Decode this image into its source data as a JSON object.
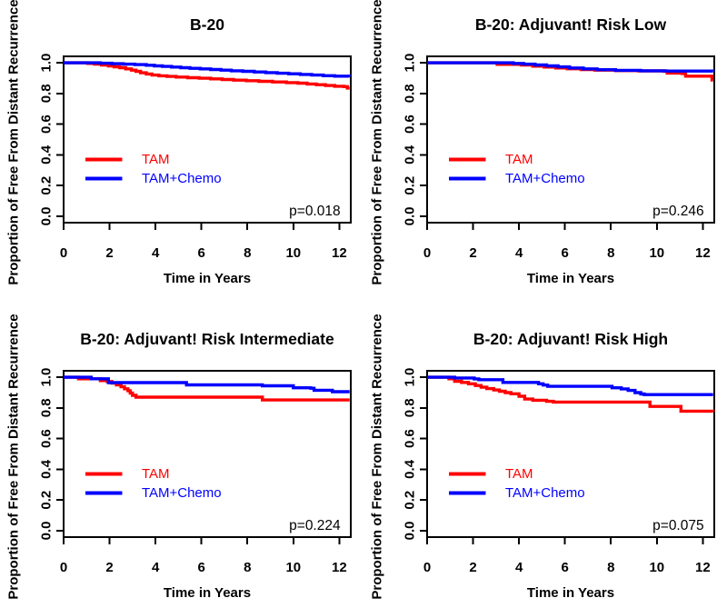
{
  "figure": {
    "background": "#ffffff",
    "axis_color": "#000000",
    "tam_color": "#ff0000",
    "tam_chemo_color": "#0000ff"
  },
  "chart_data": [
    {
      "type": "line",
      "subtype": "kaplan-meier-step",
      "title": "B-20",
      "xlabel": "Time in Years",
      "ylabel": "Proportion of Free From Distant Recurrence",
      "xlim": [
        0,
        12
      ],
      "ylim": [
        0,
        1
      ],
      "xticks": [
        0,
        2,
        4,
        6,
        8,
        10,
        12
      ],
      "yticks": [
        "0.0",
        "0.2",
        "0.4",
        "0.6",
        "0.8",
        "1.0"
      ],
      "annotation": "p=0.018",
      "p_value": 0.018,
      "grid": false,
      "legend": {
        "entries": [
          {
            "label": "TAM",
            "color": "#ff0000"
          },
          {
            "label": "TAM+Chemo",
            "color": "#0000ff"
          }
        ]
      },
      "series": [
        {
          "name": "TAM",
          "color": "#ff0000",
          "points": [
            [
              0,
              1.0
            ],
            [
              0.9,
              1.0
            ],
            [
              1.05,
              0.996
            ],
            [
              1.35,
              0.991
            ],
            [
              1.65,
              0.986
            ],
            [
              1.95,
              0.98
            ],
            [
              2.2,
              0.974
            ],
            [
              2.45,
              0.968
            ],
            [
              2.7,
              0.96
            ],
            [
              2.95,
              0.952
            ],
            [
              3.15,
              0.944
            ],
            [
              3.35,
              0.935
            ],
            [
              3.6,
              0.927
            ],
            [
              3.85,
              0.92
            ],
            [
              4.15,
              0.915
            ],
            [
              4.5,
              0.911
            ],
            [
              4.9,
              0.907
            ],
            [
              5.4,
              0.903
            ],
            [
              5.9,
              0.899
            ],
            [
              6.4,
              0.895
            ],
            [
              6.9,
              0.891
            ],
            [
              7.4,
              0.887
            ],
            [
              7.95,
              0.883
            ],
            [
              8.5,
              0.879
            ],
            [
              9.1,
              0.875
            ],
            [
              9.7,
              0.871
            ],
            [
              10.2,
              0.867
            ],
            [
              10.6,
              0.862
            ],
            [
              11.0,
              0.857
            ],
            [
              11.4,
              0.852
            ],
            [
              11.8,
              0.847
            ],
            [
              12.2,
              0.845
            ],
            [
              12.35,
              0.835
            ]
          ]
        },
        {
          "name": "TAM+Chemo",
          "color": "#0000ff",
          "points": [
            [
              0,
              1.0
            ],
            [
              1.45,
              1.0
            ],
            [
              1.6,
              0.997
            ],
            [
              2.1,
              0.994
            ],
            [
              2.6,
              0.991
            ],
            [
              3.1,
              0.988
            ],
            [
              3.6,
              0.984
            ],
            [
              3.95,
              0.98
            ],
            [
              4.3,
              0.976
            ],
            [
              4.7,
              0.972
            ],
            [
              5.1,
              0.968
            ],
            [
              5.5,
              0.964
            ],
            [
              5.95,
              0.96
            ],
            [
              6.4,
              0.956
            ],
            [
              6.85,
              0.952
            ],
            [
              7.3,
              0.948
            ],
            [
              7.8,
              0.944
            ],
            [
              8.3,
              0.94
            ],
            [
              8.8,
              0.936
            ],
            [
              9.3,
              0.932
            ],
            [
              9.8,
              0.928
            ],
            [
              10.3,
              0.924
            ],
            [
              10.8,
              0.92
            ],
            [
              11.3,
              0.916
            ],
            [
              11.8,
              0.913
            ],
            [
              12.45,
              0.911
            ]
          ]
        }
      ]
    },
    {
      "type": "line",
      "subtype": "kaplan-meier-step",
      "title": "B-20: Adjuvant! Risk Low",
      "xlabel": "Time in Years",
      "ylabel": "Proportion of Free From Distant Recurrence",
      "xlim": [
        0,
        12
      ],
      "ylim": [
        0,
        1
      ],
      "xticks": [
        0,
        2,
        4,
        6,
        8,
        10,
        12
      ],
      "yticks": [
        "0.0",
        "0.2",
        "0.4",
        "0.6",
        "0.8",
        "1.0"
      ],
      "annotation": "p=0.246",
      "p_value": 0.246,
      "grid": false,
      "legend": {
        "entries": [
          {
            "label": "TAM",
            "color": "#ff0000"
          },
          {
            "label": "TAM+Chemo",
            "color": "#0000ff"
          }
        ]
      },
      "series": [
        {
          "name": "TAM",
          "color": "#ff0000",
          "points": [
            [
              0,
              1.0
            ],
            [
              2.9,
              1.0
            ],
            [
              3.05,
              0.99
            ],
            [
              3.9,
              0.99
            ],
            [
              4.1,
              0.985
            ],
            [
              4.6,
              0.978
            ],
            [
              5.1,
              0.972
            ],
            [
              5.6,
              0.966
            ],
            [
              6.1,
              0.961
            ],
            [
              6.7,
              0.956
            ],
            [
              7.3,
              0.952
            ],
            [
              8.2,
              0.949
            ],
            [
              9.2,
              0.947
            ],
            [
              10.3,
              0.945
            ],
            [
              10.45,
              0.933
            ],
            [
              11.1,
              0.93
            ],
            [
              11.25,
              0.913
            ],
            [
              12.3,
              0.913
            ],
            [
              12.4,
              0.888
            ]
          ]
        },
        {
          "name": "TAM+Chemo",
          "color": "#0000ff",
          "points": [
            [
              0,
              1.0
            ],
            [
              3.6,
              1.0
            ],
            [
              3.75,
              0.996
            ],
            [
              4.2,
              0.991
            ],
            [
              4.7,
              0.986
            ],
            [
              5.2,
              0.98
            ],
            [
              5.7,
              0.973
            ],
            [
              6.2,
              0.966
            ],
            [
              6.8,
              0.96
            ],
            [
              7.4,
              0.955
            ],
            [
              8.2,
              0.951
            ],
            [
              9.3,
              0.948
            ],
            [
              10.4,
              0.946
            ],
            [
              12.45,
              0.945
            ]
          ]
        }
      ]
    },
    {
      "type": "line",
      "subtype": "kaplan-meier-step",
      "title": "B-20: Adjuvant! Risk Intermediate",
      "xlabel": "Time in Years",
      "ylabel": "Proportion of Free From Distant Recurrence",
      "xlim": [
        0,
        12
      ],
      "ylim": [
        0,
        1
      ],
      "xticks": [
        0,
        2,
        4,
        6,
        8,
        10,
        12
      ],
      "yticks": [
        "0.0",
        "0.2",
        "0.4",
        "0.6",
        "0.8",
        "1.0"
      ],
      "annotation": "p=0.224",
      "p_value": 0.224,
      "grid": false,
      "legend": {
        "entries": [
          {
            "label": "TAM",
            "color": "#ff0000"
          },
          {
            "label": "TAM+Chemo",
            "color": "#0000ff"
          }
        ]
      },
      "series": [
        {
          "name": "TAM",
          "color": "#ff0000",
          "points": [
            [
              0,
              1.0
            ],
            [
              0.55,
              1.0
            ],
            [
              0.65,
              0.99
            ],
            [
              1.5,
              0.99
            ],
            [
              1.6,
              0.978
            ],
            [
              1.9,
              0.972
            ],
            [
              2.1,
              0.962
            ],
            [
              2.3,
              0.95
            ],
            [
              2.5,
              0.938
            ],
            [
              2.65,
              0.925
            ],
            [
              2.8,
              0.912
            ],
            [
              2.9,
              0.897
            ],
            [
              3.0,
              0.882
            ],
            [
              3.15,
              0.87
            ],
            [
              8.5,
              0.87
            ],
            [
              8.65,
              0.852
            ],
            [
              12.45,
              0.852
            ]
          ]
        },
        {
          "name": "TAM+Chemo",
          "color": "#0000ff",
          "points": [
            [
              0,
              1.0
            ],
            [
              1.05,
              1.0
            ],
            [
              1.2,
              0.99
            ],
            [
              1.8,
              0.99
            ],
            [
              1.95,
              0.965
            ],
            [
              5.2,
              0.965
            ],
            [
              5.35,
              0.95
            ],
            [
              8.5,
              0.95
            ],
            [
              8.65,
              0.944
            ],
            [
              9.85,
              0.944
            ],
            [
              10.0,
              0.931
            ],
            [
              10.75,
              0.928
            ],
            [
              10.9,
              0.915
            ],
            [
              11.6,
              0.915
            ],
            [
              11.7,
              0.906
            ],
            [
              12.45,
              0.906
            ]
          ]
        }
      ]
    },
    {
      "type": "line",
      "subtype": "kaplan-meier-step",
      "title": "B-20: Adjuvant! Risk High",
      "xlabel": "Time in Years",
      "ylabel": "Proportion of Free From Distant Recurrence",
      "xlim": [
        0,
        12
      ],
      "ylim": [
        0,
        1
      ],
      "xticks": [
        0,
        2,
        4,
        6,
        8,
        10,
        12
      ],
      "yticks": [
        "0.0",
        "0.2",
        "0.4",
        "0.6",
        "0.8",
        "1.0"
      ],
      "annotation": "p=0.075",
      "p_value": 0.075,
      "grid": false,
      "legend": {
        "entries": [
          {
            "label": "TAM",
            "color": "#ff0000"
          },
          {
            "label": "TAM+Chemo",
            "color": "#0000ff"
          }
        ]
      },
      "series": [
        {
          "name": "TAM",
          "color": "#ff0000",
          "points": [
            [
              0,
              1.0
            ],
            [
              0.85,
              1.0
            ],
            [
              0.95,
              0.99
            ],
            [
              1.2,
              0.974
            ],
            [
              1.5,
              0.966
            ],
            [
              1.8,
              0.957
            ],
            [
              2.1,
              0.946
            ],
            [
              2.35,
              0.935
            ],
            [
              2.6,
              0.926
            ],
            [
              2.9,
              0.917
            ],
            [
              3.15,
              0.909
            ],
            [
              3.4,
              0.9
            ],
            [
              3.65,
              0.892
            ],
            [
              4.0,
              0.876
            ],
            [
              4.25,
              0.858
            ],
            [
              4.6,
              0.85
            ],
            [
              5.2,
              0.843
            ],
            [
              5.5,
              0.838
            ],
            [
              9.55,
              0.838
            ],
            [
              9.7,
              0.81
            ],
            [
              10.9,
              0.81
            ],
            [
              11.05,
              0.779
            ],
            [
              12.45,
              0.777
            ]
          ]
        },
        {
          "name": "TAM+Chemo",
          "color": "#0000ff",
          "points": [
            [
              0,
              1.0
            ],
            [
              1.05,
              1.0
            ],
            [
              1.2,
              0.995
            ],
            [
              1.95,
              0.995
            ],
            [
              2.05,
              0.989
            ],
            [
              2.25,
              0.984
            ],
            [
              3.15,
              0.984
            ],
            [
              3.3,
              0.966
            ],
            [
              4.7,
              0.966
            ],
            [
              4.85,
              0.957
            ],
            [
              5.05,
              0.949
            ],
            [
              5.25,
              0.941
            ],
            [
              7.9,
              0.941
            ],
            [
              8.05,
              0.931
            ],
            [
              8.45,
              0.924
            ],
            [
              8.75,
              0.914
            ],
            [
              9.05,
              0.9
            ],
            [
              9.3,
              0.891
            ],
            [
              9.45,
              0.887
            ],
            [
              12.45,
              0.887
            ]
          ]
        }
      ]
    }
  ]
}
